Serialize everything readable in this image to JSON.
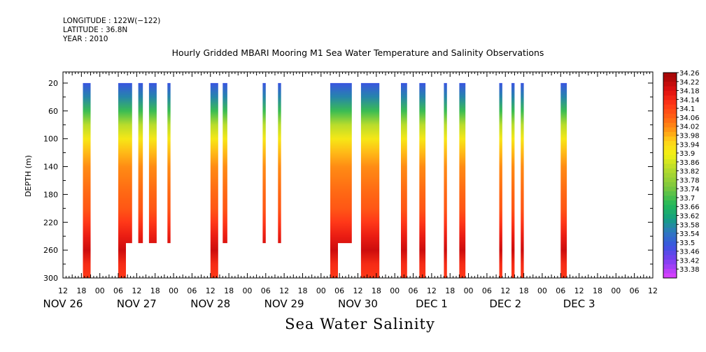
{
  "header": {
    "longitude": "LONGITUDE : 122W(−122)",
    "latitude": "LATITUDE : 36.8N",
    "year": "YEAR : 2010"
  },
  "title": "Hourly Gridded MBARI Mooring M1 Sea Water Temperature and Salinity Observations",
  "bottom_title": "Sea Water Salinity",
  "chart_data": {
    "type": "heatmap",
    "title": "Hourly Gridded MBARI Mooring M1 Sea Water Temperature and Salinity Observations",
    "xlabel": "",
    "ylabel": "DEPTH (m)",
    "x_hour_ticks": [
      "12",
      "18",
      "00",
      "06",
      "12",
      "18",
      "00",
      "06",
      "12",
      "18",
      "00",
      "06",
      "12",
      "18",
      "00",
      "06",
      "12",
      "18",
      "00",
      "06",
      "12",
      "18",
      "00",
      "06",
      "12",
      "18",
      "00",
      "06",
      "12",
      "18",
      "00",
      "06",
      "12"
    ],
    "x_day_labels": [
      "NOV 26",
      "NOV 27",
      "NOV 28",
      "NOV 29",
      "NOV 30",
      "DEC  1",
      "DEC  2",
      "DEC  3"
    ],
    "x_range_hours_since_nov26_00": [
      12,
      204
    ],
    "y_ticks": [
      20,
      60,
      100,
      140,
      180,
      220,
      260,
      300
    ],
    "ylim": [
      300,
      4
    ],
    "y_inverted": true,
    "colorbar": {
      "labels": [
        "34.26",
        "34.22",
        "34.18",
        "34.14",
        "34.1",
        "34.06",
        "34.02",
        "33.98",
        "33.94",
        "33.9",
        "33.86",
        "33.82",
        "33.78",
        "33.74",
        "33.7",
        "33.66",
        "33.62",
        "33.58",
        "33.54",
        "33.5",
        "33.46",
        "33.42",
        "33.38"
      ],
      "min": 33.38,
      "max": 34.28
    },
    "observation_periods": [
      {
        "start": "NOV 26 18:30",
        "end": "NOV 26 21:00",
        "depth_max": 300
      },
      {
        "start": "NOV 27 06:00",
        "end": "NOV 27 08:30",
        "depth_max": 300
      },
      {
        "start": "NOV 27 08:30",
        "end": "NOV 27 10:30",
        "depth_max": 250
      },
      {
        "start": "NOV 27 12:30",
        "end": "NOV 27 14:00",
        "depth_max": 250
      },
      {
        "start": "NOV 27 16:00",
        "end": "NOV 27 18:30",
        "depth_max": 250
      },
      {
        "start": "NOV 27 22:00",
        "end": "NOV 27 23:00",
        "depth_max": 250
      },
      {
        "start": "NOV 28 12:00",
        "end": "NOV 28 14:30",
        "depth_max": 300
      },
      {
        "start": "NOV 28 16:00",
        "end": "NOV 28 17:30",
        "depth_max": 250
      },
      {
        "start": "NOV 29 05:00",
        "end": "NOV 29 06:00",
        "depth_max": 250
      },
      {
        "start": "NOV 29 10:00",
        "end": "NOV 29 11:00",
        "depth_max": 250
      },
      {
        "start": "NOV 30 03:00",
        "end": "NOV 30 05:30",
        "depth_max": 300
      },
      {
        "start": "NOV 30 05:30",
        "end": "NOV 30 10:00",
        "depth_max": 250
      },
      {
        "start": "NOV 30 13:00",
        "end": "NOV 30 19:00",
        "depth_max": 300
      },
      {
        "start": "DEC 1 02:00",
        "end": "DEC 1 04:00",
        "depth_max": 300
      },
      {
        "start": "DEC 1 08:00",
        "end": "DEC 1 10:00",
        "depth_max": 300
      },
      {
        "start": "DEC 1 16:00",
        "end": "DEC 1 17:00",
        "depth_max": 300
      },
      {
        "start": "DEC 1 21:00",
        "end": "DEC 1 23:00",
        "depth_max": 300
      },
      {
        "start": "DEC 2 10:00",
        "end": "DEC 2 11:00",
        "depth_max": 300
      },
      {
        "start": "DEC 2 14:00",
        "end": "DEC 2 15:00",
        "depth_max": 300
      },
      {
        "start": "DEC 2 17:00",
        "end": "DEC 2 18:00",
        "depth_max": 300
      },
      {
        "start": "DEC 3 06:00",
        "end": "DEC 3 08:00",
        "depth_max": 300
      }
    ],
    "salinity_profile": [
      {
        "depth": 20,
        "value": 33.52
      },
      {
        "depth": 40,
        "value": 33.6
      },
      {
        "depth": 60,
        "value": 33.72
      },
      {
        "depth": 80,
        "value": 33.86
      },
      {
        "depth": 100,
        "value": 33.94
      },
      {
        "depth": 120,
        "value": 34.0
      },
      {
        "depth": 140,
        "value": 34.04
      },
      {
        "depth": 160,
        "value": 34.06
      },
      {
        "depth": 180,
        "value": 34.08
      },
      {
        "depth": 200,
        "value": 34.1
      },
      {
        "depth": 220,
        "value": 34.14
      },
      {
        "depth": 240,
        "value": 34.18
      },
      {
        "depth": 260,
        "value": 34.22
      },
      {
        "depth": 280,
        "value": 34.16
      },
      {
        "depth": 300,
        "value": 34.14
      }
    ]
  }
}
